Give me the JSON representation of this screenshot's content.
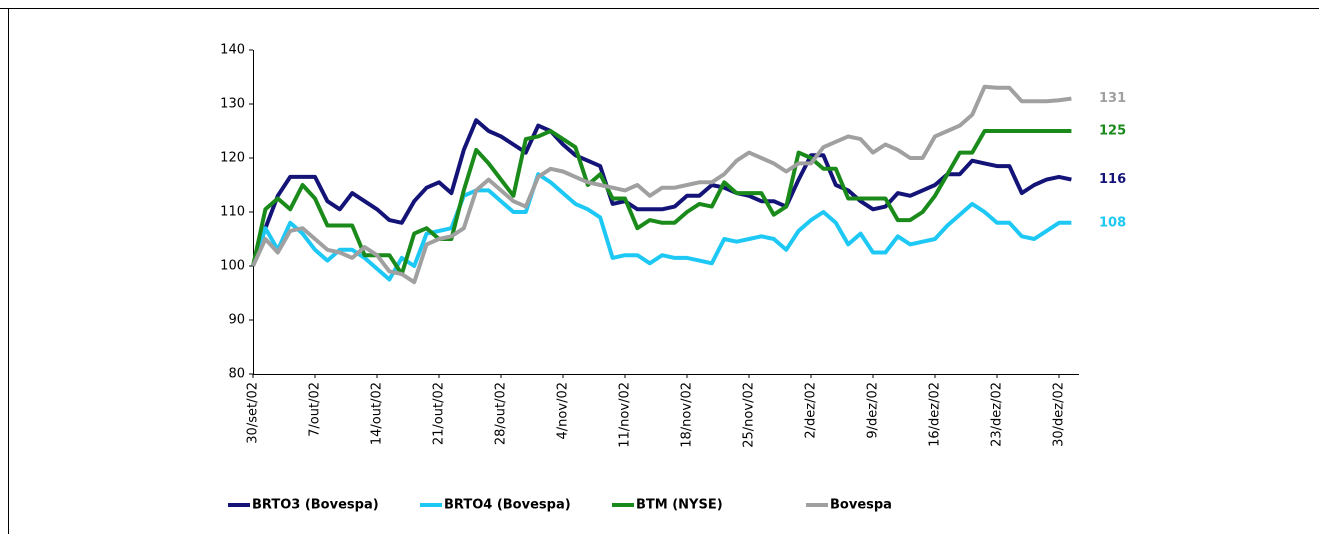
{
  "chart_data": {
    "type": "line",
    "categories": [
      "30/set/02",
      null,
      null,
      null,
      null,
      "7/out/02",
      null,
      null,
      null,
      null,
      "14/out/02",
      null,
      null,
      null,
      null,
      "21/out/02",
      null,
      null,
      null,
      null,
      "28/out/02",
      null,
      null,
      null,
      null,
      "4/nov/02",
      null,
      null,
      null,
      null,
      "11/nov/02",
      null,
      null,
      null,
      null,
      "18/nov/02",
      null,
      null,
      null,
      null,
      "25/nov/02",
      null,
      null,
      null,
      null,
      "2/dez/02",
      null,
      null,
      null,
      null,
      "9/dez/02",
      null,
      null,
      null,
      null,
      "16/dez/02",
      null,
      null,
      null,
      null,
      "23/dez/02",
      null,
      null,
      null,
      null,
      "30/dez/02",
      null
    ],
    "series": [
      {
        "name": "BRTO3 (Bovespa)",
        "color": "#141478",
        "values": [
          100,
          107,
          113,
          116.5,
          116.5,
          116.5,
          112,
          110.5,
          113.5,
          112,
          110.5,
          108.5,
          108,
          112,
          114.5,
          115.5,
          113.5,
          121.5,
          127,
          125,
          124,
          122.5,
          121,
          126,
          125,
          122.5,
          120.5,
          119.5,
          118.5,
          111.5,
          112,
          110.5,
          110.5,
          110.5,
          111,
          113,
          113,
          115,
          114.5,
          113.5,
          113,
          112,
          112,
          111,
          116,
          120.5,
          120.5,
          115,
          114,
          112,
          110.5,
          111,
          113.5,
          113,
          114,
          115,
          117,
          117,
          119.5,
          119,
          118.5,
          118.5,
          113.5,
          115,
          116,
          116.5,
          116
        ]
      },
      {
        "name": "BRTO4 (Bovespa)",
        "color": "#1ec8f5",
        "values": [
          100,
          107,
          103,
          108,
          106,
          103,
          101,
          103,
          103,
          101.5,
          99.5,
          97.5,
          101.5,
          100,
          106,
          106.5,
          107,
          113,
          114,
          114,
          112,
          110,
          110,
          117,
          115.5,
          113.5,
          111.5,
          110.5,
          109,
          101.5,
          102,
          102,
          100.5,
          102,
          101.5,
          101.5,
          101,
          100.5,
          105,
          104.5,
          105,
          105.5,
          105,
          103,
          106.5,
          108.5,
          110,
          108,
          104,
          106,
          102.5,
          102.5,
          105.5,
          104,
          104.5,
          105,
          107.5,
          109.5,
          111.5,
          110,
          108,
          108,
          105.5,
          105,
          106.5,
          108,
          108
        ]
      },
      {
        "name": "BTM (NYSE)",
        "color": "#1a8a1a",
        "values": [
          100,
          110.5,
          112.5,
          110.5,
          115,
          112.5,
          107.5,
          107.5,
          107.5,
          102,
          102,
          102,
          98.5,
          106,
          107,
          105,
          105,
          114,
          121.5,
          119,
          116,
          113,
          123.5,
          124,
          125,
          123.5,
          122,
          115,
          117,
          112.5,
          112.5,
          107,
          108.5,
          108,
          108,
          110,
          111.5,
          111,
          115.5,
          113.5,
          113.5,
          113.5,
          109.5,
          111,
          121,
          120,
          118,
          118,
          112.5,
          112.5,
          112.5,
          112.5,
          108.5,
          108.5,
          110,
          113,
          117,
          121,
          121,
          125,
          125,
          125,
          125,
          125,
          125,
          125,
          125
        ]
      },
      {
        "name": "Bovespa",
        "color": "#a0a0a0",
        "values": [
          100,
          105,
          102.5,
          106.5,
          107,
          105,
          103,
          102.5,
          101.5,
          103.5,
          102,
          99,
          98.5,
          97,
          104,
          105,
          105.5,
          107,
          114,
          116,
          114,
          112,
          111,
          116.5,
          118,
          117.5,
          116.5,
          115.5,
          115,
          114.5,
          114,
          115,
          113,
          114.5,
          114.5,
          115,
          115.5,
          115.5,
          117,
          119.5,
          121,
          120,
          119,
          117.5,
          119,
          119,
          122,
          123,
          124,
          123.5,
          121,
          122.5,
          121.5,
          120,
          120,
          124,
          125,
          126,
          128,
          133.2,
          133,
          133,
          130.5,
          130.5,
          130.5,
          130.7,
          131
        ]
      }
    ],
    "ylim": [
      80,
      140
    ],
    "yticks": [
      80,
      90,
      100,
      110,
      120,
      130,
      140
    ],
    "grid": false,
    "legend": "bottom"
  }
}
